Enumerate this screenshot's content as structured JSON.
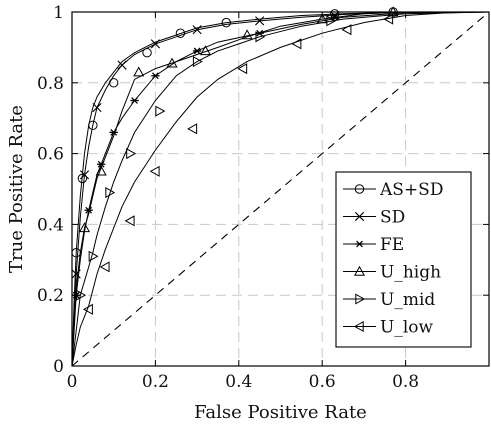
{
  "chart_data": {
    "type": "line",
    "xlabel": "False Positive Rate",
    "ylabel": "True Positive Rate",
    "xlim": [
      0,
      1
    ],
    "ylim": [
      0,
      1
    ],
    "x_ticks": [
      0,
      0.2,
      0.4,
      0.6,
      0.8
    ],
    "x_tick_labels": [
      "0",
      "0.2",
      "0.4",
      "0.6",
      "0.8"
    ],
    "y_ticks": [
      0,
      0.2,
      0.4,
      0.6,
      0.8,
      1
    ],
    "y_tick_labels": [
      "0",
      "0.2",
      "0.4",
      "0.6",
      "0.8",
      "1"
    ],
    "grid": true,
    "legend_position": "lower-right",
    "reference_line": {
      "style": "dashed",
      "from": [
        0,
        0
      ],
      "to": [
        1,
        1
      ]
    },
    "series": [
      {
        "name": "AS+SD",
        "marker": "circle",
        "x": [
          0,
          0.005,
          0.01,
          0.02,
          0.03,
          0.04,
          0.05,
          0.06,
          0.08,
          0.1,
          0.12,
          0.15,
          0.2,
          0.25,
          0.3,
          0.37,
          0.45,
          0.55,
          0.65,
          0.8,
          1.0
        ],
        "y": [
          0,
          0.18,
          0.32,
          0.48,
          0.6,
          0.68,
          0.73,
          0.76,
          0.8,
          0.83,
          0.86,
          0.885,
          0.915,
          0.935,
          0.955,
          0.97,
          0.98,
          0.99,
          0.995,
          1.0,
          1.0
        ],
        "marker_points": [
          [
            0.01,
            0.32
          ],
          [
            0.025,
            0.53
          ],
          [
            0.05,
            0.68
          ],
          [
            0.1,
            0.8
          ],
          [
            0.18,
            0.885
          ],
          [
            0.26,
            0.94
          ],
          [
            0.37,
            0.97
          ],
          [
            0.63,
            0.995
          ],
          [
            0.77,
            1.0
          ]
        ]
      },
      {
        "name": "SD",
        "marker": "x",
        "x": [
          0,
          0.005,
          0.01,
          0.02,
          0.03,
          0.04,
          0.05,
          0.06,
          0.08,
          0.1,
          0.12,
          0.15,
          0.2,
          0.25,
          0.3,
          0.37,
          0.45,
          0.55,
          0.65,
          0.8,
          1.0
        ],
        "y": [
          0,
          0.12,
          0.26,
          0.42,
          0.54,
          0.62,
          0.68,
          0.73,
          0.78,
          0.82,
          0.85,
          0.88,
          0.91,
          0.93,
          0.95,
          0.965,
          0.975,
          0.985,
          0.993,
          1.0,
          1.0
        ],
        "marker_points": [
          [
            0.01,
            0.26
          ],
          [
            0.03,
            0.54
          ],
          [
            0.06,
            0.73
          ],
          [
            0.12,
            0.85
          ],
          [
            0.2,
            0.91
          ],
          [
            0.3,
            0.95
          ],
          [
            0.45,
            0.975
          ],
          [
            0.63,
            0.99
          ]
        ]
      },
      {
        "name": "FE",
        "marker": "asterisk",
        "x": [
          0,
          0.005,
          0.01,
          0.02,
          0.03,
          0.04,
          0.05,
          0.06,
          0.08,
          0.1,
          0.12,
          0.15,
          0.2,
          0.25,
          0.3,
          0.35,
          0.45,
          0.55,
          0.65,
          0.8,
          1.0
        ],
        "y": [
          0,
          0.1,
          0.2,
          0.3,
          0.38,
          0.44,
          0.49,
          0.54,
          0.6,
          0.66,
          0.7,
          0.75,
          0.82,
          0.86,
          0.89,
          0.915,
          0.94,
          0.965,
          0.985,
          0.998,
          1.0
        ],
        "marker_points": [
          [
            0.01,
            0.2
          ],
          [
            0.04,
            0.44
          ],
          [
            0.07,
            0.57
          ],
          [
            0.1,
            0.66
          ],
          [
            0.15,
            0.75
          ],
          [
            0.2,
            0.82
          ],
          [
            0.3,
            0.89
          ],
          [
            0.45,
            0.94
          ],
          [
            0.63,
            0.985
          ]
        ]
      },
      {
        "name": "U_high",
        "marker": "triangle-up",
        "x": [
          0,
          0.005,
          0.01,
          0.02,
          0.03,
          0.04,
          0.05,
          0.06,
          0.08,
          0.1,
          0.12,
          0.15,
          0.2,
          0.25,
          0.3,
          0.35,
          0.42,
          0.5,
          0.6,
          0.7,
          0.8,
          1.0
        ],
        "y": [
          0,
          0.12,
          0.22,
          0.32,
          0.39,
          0.43,
          0.48,
          0.53,
          0.59,
          0.65,
          0.72,
          0.81,
          0.84,
          0.86,
          0.88,
          0.9,
          0.93,
          0.96,
          0.98,
          0.995,
          1.0,
          1.0
        ],
        "marker_points": [
          [
            0.03,
            0.39
          ],
          [
            0.07,
            0.55
          ],
          [
            0.16,
            0.83
          ],
          [
            0.24,
            0.855
          ],
          [
            0.32,
            0.89
          ],
          [
            0.42,
            0.935
          ],
          [
            0.6,
            0.98
          ],
          [
            0.77,
            1.0
          ]
        ]
      },
      {
        "name": "U_mid",
        "marker": "triangle-right",
        "x": [
          0,
          0.005,
          0.01,
          0.02,
          0.04,
          0.05,
          0.06,
          0.08,
          0.1,
          0.12,
          0.15,
          0.2,
          0.25,
          0.3,
          0.35,
          0.4,
          0.45,
          0.55,
          0.65,
          0.8,
          1.0
        ],
        "y": [
          0,
          0.05,
          0.1,
          0.2,
          0.28,
          0.32,
          0.37,
          0.45,
          0.52,
          0.58,
          0.66,
          0.75,
          0.82,
          0.86,
          0.89,
          0.91,
          0.93,
          0.96,
          0.98,
          0.995,
          1.0
        ],
        "marker_points": [
          [
            0.02,
            0.2
          ],
          [
            0.05,
            0.31
          ],
          [
            0.09,
            0.49
          ],
          [
            0.14,
            0.6
          ],
          [
            0.21,
            0.72
          ],
          [
            0.3,
            0.86
          ],
          [
            0.45,
            0.93
          ],
          [
            0.62,
            0.975
          ]
        ]
      },
      {
        "name": "U_low",
        "marker": "triangle-left",
        "x": [
          0,
          0.01,
          0.02,
          0.04,
          0.06,
          0.08,
          0.1,
          0.12,
          0.15,
          0.2,
          0.25,
          0.3,
          0.35,
          0.42,
          0.5,
          0.6,
          0.7,
          0.8,
          0.9,
          1.0
        ],
        "y": [
          0,
          0.06,
          0.11,
          0.17,
          0.26,
          0.33,
          0.39,
          0.45,
          0.52,
          0.61,
          0.69,
          0.76,
          0.81,
          0.86,
          0.9,
          0.94,
          0.97,
          0.99,
          0.998,
          1.0
        ],
        "marker_points": [
          [
            0.04,
            0.16
          ],
          [
            0.08,
            0.28
          ],
          [
            0.14,
            0.41
          ],
          [
            0.2,
            0.55
          ],
          [
            0.29,
            0.67
          ],
          [
            0.41,
            0.84
          ],
          [
            0.54,
            0.91
          ],
          [
            0.66,
            0.95
          ],
          [
            0.76,
            0.98
          ]
        ]
      }
    ]
  }
}
